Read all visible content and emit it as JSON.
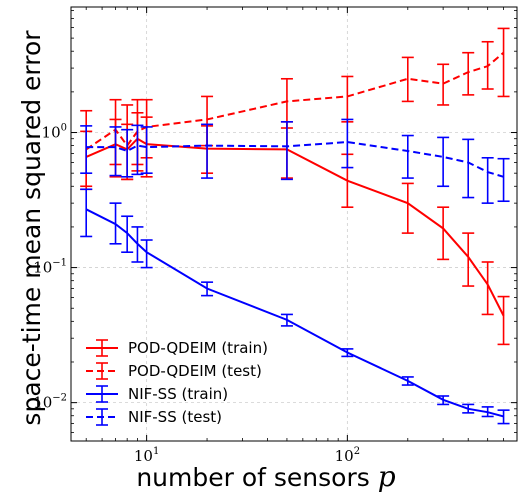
{
  "chart_data": {
    "type": "line",
    "xscale": "log",
    "yscale": "log",
    "xlim": [
      4.2,
      700
    ],
    "ylim": [
      0.0052,
      8.5
    ],
    "xlabel": "number of sensors",
    "xlabel_var": "p",
    "ylabel": "space-time mean squared error",
    "x_ticks": [
      {
        "value": 10,
        "base": "10",
        "exp": "1"
      },
      {
        "value": 100,
        "base": "10",
        "exp": "2"
      }
    ],
    "y_ticks": [
      {
        "value": 0.01,
        "base": "10",
        "exp": "−2"
      },
      {
        "value": 0.1,
        "base": "10",
        "exp": "−1"
      },
      {
        "value": 1,
        "base": "10",
        "exp": "0"
      }
    ],
    "grid": true,
    "legend_position": "lower-left",
    "series": [
      {
        "name": "POD-QDEIM (train)",
        "color": "#ff0000",
        "dash": "solid",
        "x": [
          5,
          7,
          8,
          9,
          10,
          20,
          50,
          100,
          200,
          300,
          400,
          500,
          600
        ],
        "y": [
          0.66,
          0.82,
          0.75,
          0.9,
          0.82,
          0.76,
          0.75,
          0.44,
          0.3,
          0.195,
          0.12,
          0.075,
          0.044
        ],
        "ylow": [
          0.38,
          0.47,
          0.45,
          0.52,
          0.47,
          0.5,
          0.46,
          0.28,
          0.18,
          0.115,
          0.073,
          0.045,
          0.027
        ],
        "yhigh": [
          1.02,
          1.25,
          1.15,
          1.4,
          1.3,
          1.12,
          1.2,
          0.69,
          0.42,
          0.28,
          0.18,
          0.11,
          0.061
        ]
      },
      {
        "name": "POD-QDEIM (test)",
        "color": "#ff0000",
        "dash": "dashed",
        "x": [
          5,
          7,
          8,
          9,
          10,
          20,
          50,
          100,
          200,
          300,
          400,
          500,
          600
        ],
        "y": [
          0.75,
          1.05,
          0.8,
          1.02,
          1.1,
          1.25,
          1.7,
          1.85,
          2.5,
          2.3,
          2.8,
          3.1,
          3.9
        ],
        "ylow": [
          0.4,
          0.58,
          0.45,
          0.58,
          0.65,
          0.8,
          1.08,
          1.2,
          1.7,
          1.6,
          1.9,
          2.1,
          1.85
        ],
        "yhigh": [
          1.45,
          1.75,
          1.6,
          1.75,
          1.75,
          1.85,
          2.5,
          2.6,
          3.6,
          3.2,
          3.9,
          4.7,
          5.9
        ]
      },
      {
        "name": "NIF-SS (train)",
        "color": "#0000ff",
        "dash": "solid",
        "x": [
          5,
          7,
          8,
          9,
          10,
          20,
          50,
          100,
          200,
          300,
          400,
          500,
          600
        ],
        "y": [
          0.27,
          0.21,
          0.18,
          0.15,
          0.13,
          0.07,
          0.041,
          0.0235,
          0.0145,
          0.0105,
          0.009,
          0.0085,
          0.0079
        ],
        "ylow": [
          0.17,
          0.15,
          0.13,
          0.11,
          0.1,
          0.062,
          0.037,
          0.022,
          0.0135,
          0.0097,
          0.0084,
          0.0079,
          0.007
        ],
        "yhigh": [
          0.38,
          0.3,
          0.24,
          0.2,
          0.16,
          0.078,
          0.045,
          0.025,
          0.0155,
          0.0112,
          0.0097,
          0.0093,
          0.0088
        ]
      },
      {
        "name": "NIF-SS (test)",
        "color": "#0000ff",
        "dash": "dashed",
        "x": [
          5,
          7,
          8,
          9,
          10,
          20,
          50,
          100,
          200,
          300,
          400,
          500,
          600
        ],
        "y": [
          0.78,
          0.78,
          0.73,
          0.8,
          0.78,
          0.8,
          0.79,
          0.85,
          0.73,
          0.66,
          0.6,
          0.51,
          0.47
        ],
        "ylow": [
          0.5,
          0.48,
          0.47,
          0.49,
          0.5,
          0.46,
          0.45,
          0.55,
          0.46,
          0.4,
          0.33,
          0.3,
          0.31
        ],
        "yhigh": [
          1.12,
          1.1,
          1.05,
          1.13,
          1.1,
          1.15,
          1.2,
          1.25,
          0.95,
          0.92,
          0.89,
          0.65,
          0.64
        ]
      }
    ]
  }
}
